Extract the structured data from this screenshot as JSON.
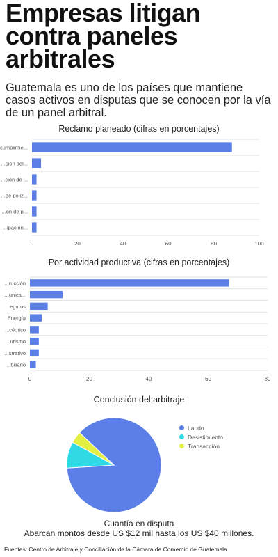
{
  "headline": "Empresas litigan contra paneles arbitrales",
  "subheadline": "Guatemala es uno de los países que mantiene casos activos en disputas que se conocen por la vía de un panel arbitral.",
  "chart_data": [
    {
      "type": "bar",
      "orientation": "horizontal",
      "title": "Reclamo planeado (cifras en porcentajes)",
      "categories": [
        "Incumplimie...",
        "...sión del...",
        "...ción de ...",
        "...de póliz...",
        "...ón de p...",
        "...ipación..."
      ],
      "values": [
        88,
        4,
        2,
        2,
        2,
        2
      ],
      "xlim": [
        0,
        100
      ],
      "xticks": [
        0,
        20,
        40,
        60,
        80,
        100
      ],
      "grid": true,
      "color": "#5b7fe6"
    },
    {
      "type": "bar",
      "orientation": "horizontal",
      "title": "Por actividad productiva  (cifras en porcentajes)",
      "categories": [
        "...rucción",
        "...unica...",
        "...eguros",
        "Energía",
        "...céutico",
        "...urismo",
        "...strativo",
        "...biliario"
      ],
      "values": [
        67,
        11,
        6,
        4,
        3,
        3,
        3,
        2
      ],
      "xlim": [
        0,
        80
      ],
      "xticks": [
        0,
        20,
        40,
        60,
        80
      ],
      "grid": true,
      "color": "#5b7fe6"
    },
    {
      "type": "pie",
      "title": "Conclusión del arbitraje",
      "labels": [
        "Laudo",
        "Desistimiento",
        "Transacción"
      ],
      "values": [
        87,
        9,
        4
      ],
      "colors": [
        "#5b7fe6",
        "#2fd9e6",
        "#e4ef44"
      ],
      "legend": "right"
    }
  ],
  "footer": {
    "title": "Cuantía en disputa",
    "text": "Abarcan montos desde US $12 mil hasta los US $40 millones."
  },
  "sources": "Fuentes: Centro de Arbitraje y Conciliación de la Cámara de Comercio de Guatemala"
}
